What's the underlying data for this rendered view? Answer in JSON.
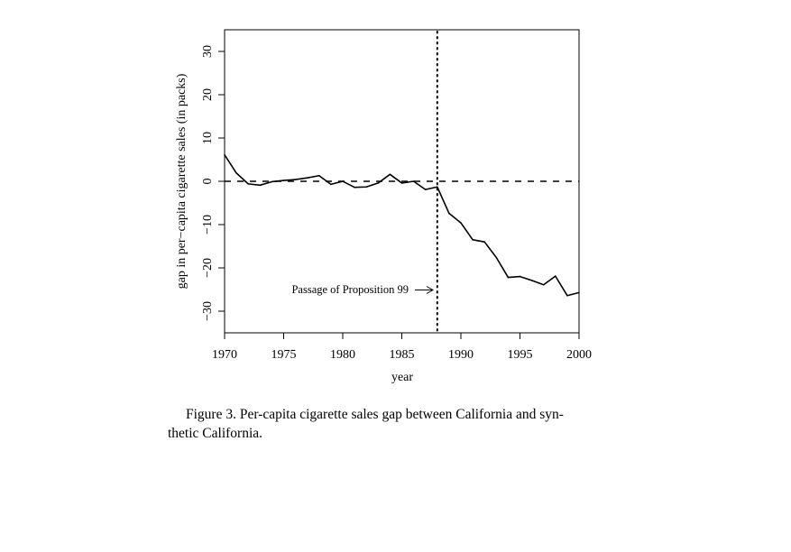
{
  "chart_data": {
    "type": "line",
    "title": "",
    "xlabel": "year",
    "ylabel": "gap in per−capita cigarette sales (in packs)",
    "xlim": [
      1970,
      2000
    ],
    "ylim": [
      -35,
      35
    ],
    "x_ticks": [
      1970,
      1975,
      1980,
      1985,
      1990,
      1995,
      2000
    ],
    "x_tick_labels": [
      "1970",
      "1975",
      "1980",
      "1985",
      "1990",
      "1995",
      "2000"
    ],
    "y_ticks": [
      -30,
      -20,
      -10,
      0,
      10,
      20,
      30
    ],
    "y_tick_labels": [
      "−30",
      "−20",
      "−10",
      "0",
      "10",
      "20",
      "30"
    ],
    "grid": false,
    "legend": "none",
    "series": [
      {
        "x": [
          1970,
          1971,
          1972,
          1973,
          1974,
          1975,
          1976,
          1977,
          1978,
          1979,
          1980,
          1981,
          1982,
          1983,
          1984,
          1985,
          1986,
          1987,
          1988,
          1989,
          1990,
          1991,
          1992,
          1993,
          1994,
          1995,
          1996,
          1997,
          1998,
          1999,
          2000
        ],
        "values": [
          6.1,
          1.9,
          -0.6,
          -0.9,
          -0.1,
          0.2,
          0.4,
          0.8,
          1.3,
          -0.7,
          0.0,
          -1.4,
          -1.3,
          -0.4,
          1.6,
          -0.4,
          0.0,
          -1.9,
          -1.3,
          -7.4,
          -9.6,
          -13.5,
          -14.0,
          -17.6,
          -22.2,
          -22.0,
          -22.9,
          -23.9,
          -21.9,
          -26.4,
          -25.7
        ]
      }
    ],
    "reference_lines": {
      "horizontal_dashed_y": 0,
      "vertical_dotted_x": 1988
    },
    "annotation": {
      "text": "Passage of Proposition 99",
      "arrow": true
    }
  },
  "caption": {
    "line1": "Figure 3.  Per-capita cigarette sales gap between California and syn-",
    "line2": "thetic California."
  },
  "colors": {
    "line": "#000000",
    "background": "#ffffff"
  }
}
